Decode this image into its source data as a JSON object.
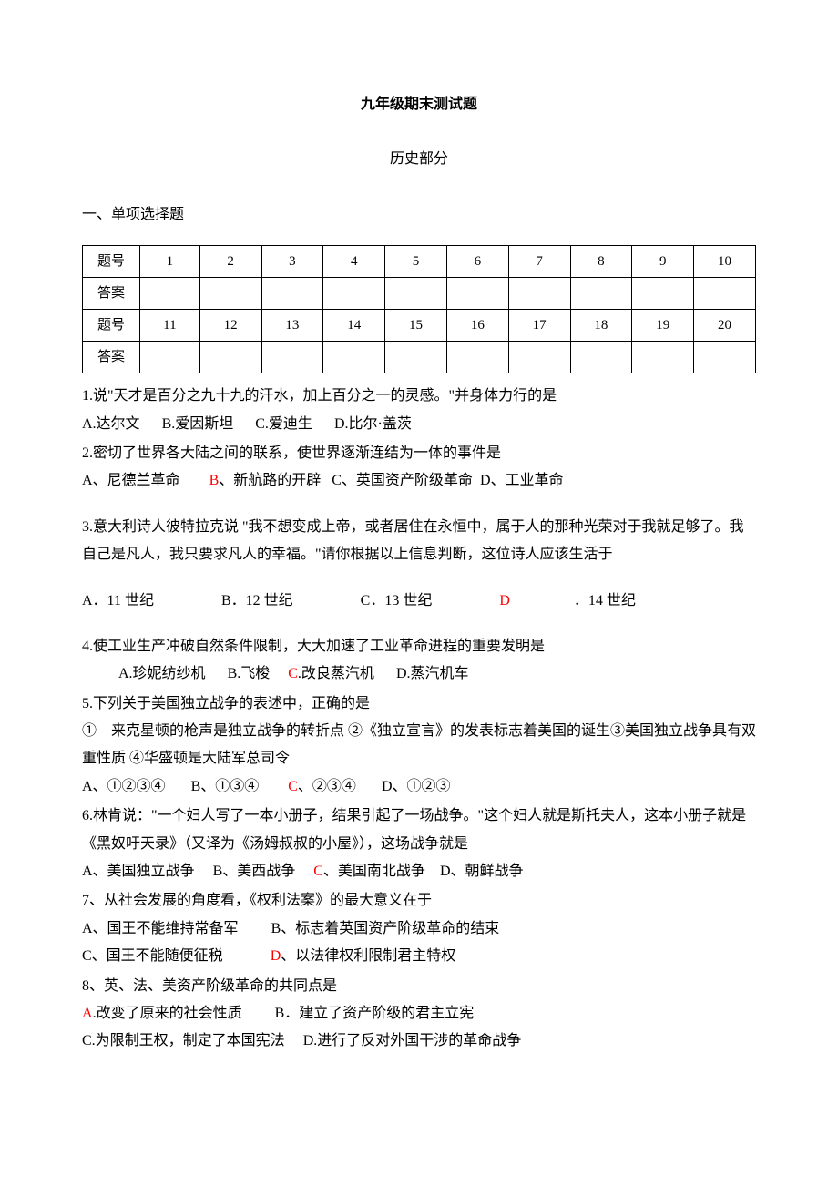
{
  "title": "九年级期末测试题",
  "subtitle": "历史部分",
  "section1": "一、单项选择题",
  "table": {
    "labelQ": "题号",
    "labelA": "答案",
    "row1": [
      "1",
      "2",
      "3",
      "4",
      "5",
      "6",
      "7",
      "8",
      "9",
      "10"
    ],
    "row2": [
      "11",
      "12",
      "13",
      "14",
      "15",
      "16",
      "17",
      "18",
      "19",
      "20"
    ]
  },
  "q1": {
    "text": "1.说\"天才是百分之九十九的汗水，加上百分之一的灵感。\"并身体力行的是",
    "a": "A.达尔文",
    "b": "B.爱因斯坦",
    "c": "C.爱迪生",
    "d": "D.比尔·盖茨"
  },
  "q2": {
    "text": "2.密切了世界各大陆之间的联系，使世界逐渐连结为一体的事件是",
    "a": "A、尼德兰革命",
    "b": "B",
    "b_tail": "、新航路的开辟",
    "c": "C、英国资产阶级革命",
    "d": "D、工业革命"
  },
  "q3": {
    "text": "3.意大利诗人彼特拉克说 \"我不想变成上帝，或者居住在永恒中，属于人的那种光荣对于我就足够了。我自己是凡人，我只要求凡人的幸福。\"请你根据以上信息判断，这位诗人应该生活于",
    "a": "A．11 世纪",
    "b": "B．12 世纪",
    "c": "C．13 世纪",
    "d_prefix": "D",
    "d_tail": "．14 世纪"
  },
  "q4": {
    "text": "4.使工业生产冲破自然条件限制，大大加速了工业革命进程的重要发明是",
    "a": "A.珍妮纺纱机",
    "b": "B.飞梭",
    "c_prefix": "C",
    "c_tail": ".改良蒸汽机",
    "d": "D.蒸汽机车"
  },
  "q5": {
    "text": "5.下列关于美国独立战争的表述中，正确的是",
    "line2": "①　来克星顿的枪声是独立战争的转折点 ②《独立宣言》的发表标志着美国的诞生③美国独立战争具有双重性质  ④华盛顿是大陆军总司令",
    "a": "A、①②③④",
    "b": "B、①③④",
    "c_prefix": "C",
    "c_tail": "、②③④",
    "d": "D、①②③"
  },
  "q6": {
    "text": "6.林肯说：\"一个妇人写了一本小册子，结果引起了一场战争。\"这个妇人就是斯托夫人，这本小册子就是《黑奴吁天录》（又译为《汤姆叔叔的小屋》），这场战争就是",
    "a": "A、美国独立战争",
    "b": "B、美西战争",
    "c_prefix": "C",
    "c_tail": "、美国南北战争",
    "d": "D、朝鲜战争"
  },
  "q7": {
    "text": "7、从社会发展的角度看，《权利法案》的最大意义在于",
    "a": "A、国王不能维持常备军",
    "b": "B、标志着英国资产阶级革命的结束",
    "c": "C、国王不能随便征税",
    "d_prefix": "D",
    "d_tail": "、以法律权利限制君主特权"
  },
  "q8": {
    "text": "8、英、法、美资产阶级革命的共同点是",
    "a_prefix": "A",
    "a_tail": ".改变了原来的社会性质",
    "b": "B．建立了资产阶级的君主立宪",
    "c": "C.为限制王权，制定了本国宪法",
    "d": "D.进行了反对外国干涉的革命战争"
  }
}
